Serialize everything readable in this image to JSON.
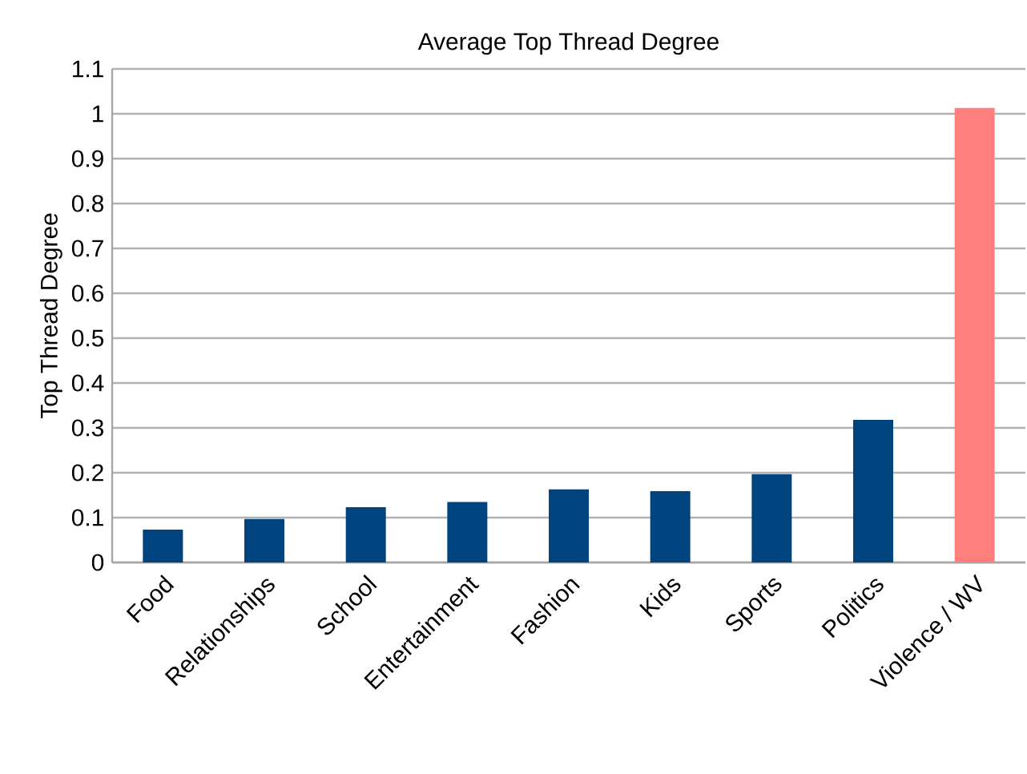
{
  "chart_data": {
    "type": "bar",
    "title": "Average Top Thread Degree",
    "ylabel": "Top Thread Degree",
    "categories": [
      "Food",
      "Relationships",
      "School",
      "Entertainment",
      "Fashion",
      "Kids",
      "Sports",
      "Politics",
      "Violence / WV"
    ],
    "values": [
      0.073,
      0.097,
      0.123,
      0.135,
      0.163,
      0.159,
      0.197,
      0.318,
      1.013
    ],
    "colors": [
      "#00447f",
      "#00447f",
      "#00447f",
      "#00447f",
      "#00447f",
      "#00447f",
      "#00447f",
      "#00447f",
      "#ff7f7f"
    ],
    "ylim": [
      0,
      1.1
    ],
    "yticks": [
      0,
      0.1,
      0.2,
      0.3,
      0.4,
      0.5,
      0.6,
      0.7,
      0.8,
      0.9,
      1,
      1.1
    ],
    "grid": "y"
  }
}
